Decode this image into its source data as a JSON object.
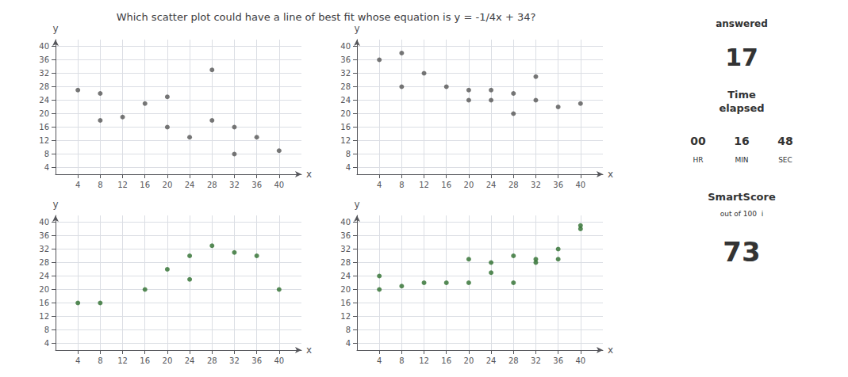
{
  "chart_data": [
    {
      "type": "scatter",
      "title": "Which scatter plot could have a line of best fit whose equation is y = -1/4x + 34?",
      "annotations": [
        "answered",
        "17",
        "Time\nelapsed",
        "00",
        "HR",
        "16",
        "MIN",
        "48",
        "SEC",
        "SmartScore",
        "out of 100  i",
        "73"
      ],
      "xlabel": "x",
      "ylabel": "y",
      "x": [
        4,
        8,
        8,
        12,
        16,
        20,
        20,
        24,
        28,
        28,
        32,
        32,
        36,
        40
      ],
      "values": [
        27,
        26,
        18,
        19,
        23,
        16,
        25,
        13,
        33,
        18,
        8,
        16,
        13,
        9
      ],
      "color": "#555555",
      "xlim": [
        0,
        44
      ],
      "ylim": [
        2,
        42
      ],
      "xticks": [
        4,
        8,
        12,
        16,
        20,
        24,
        28,
        32,
        36,
        40
      ],
      "yticks": [
        4,
        8,
        12,
        16,
        20,
        24,
        28,
        32,
        36,
        40
      ],
      "grid": true
    },
    {
      "type": "scatter",
      "xlabel": "x",
      "ylabel": "y",
      "x": [
        4,
        8,
        8,
        12,
        16,
        20,
        20,
        24,
        24,
        28,
        28,
        32,
        32,
        36,
        40
      ],
      "values": [
        36,
        38,
        28,
        32,
        28,
        27,
        24,
        27,
        24,
        26,
        20,
        31,
        24,
        22,
        23
      ],
      "color": "#555555",
      "xlim": [
        0,
        44
      ],
      "ylim": [
        2,
        42
      ],
      "xticks": [
        4,
        8,
        12,
        16,
        20,
        24,
        28,
        32,
        36,
        40
      ],
      "yticks": [
        4,
        8,
        12,
        16,
        20,
        24,
        28,
        32,
        36,
        40
      ],
      "grid": true
    },
    {
      "type": "scatter",
      "xlabel": "x",
      "ylabel": "y",
      "x": [
        4,
        8,
        16,
        20,
        24,
        24,
        28,
        32,
        36,
        40
      ],
      "values": [
        16,
        16,
        20,
        26,
        23,
        30,
        33,
        31,
        30,
        20
      ],
      "color": "#2d6e2d",
      "xlim": [
        0,
        44
      ],
      "ylim": [
        2,
        42
      ],
      "xticks": [
        4,
        8,
        12,
        16,
        20,
        24,
        28,
        32,
        36,
        40
      ],
      "yticks": [
        4,
        8,
        12,
        16,
        20,
        24,
        28,
        32,
        36,
        40
      ],
      "grid": true
    },
    {
      "type": "scatter",
      "xlabel": "x",
      "ylabel": "y",
      "x": [
        4,
        4,
        8,
        12,
        16,
        20,
        20,
        24,
        24,
        28,
        28,
        32,
        32,
        36,
        36,
        40,
        40
      ],
      "values": [
        24,
        20,
        21,
        22,
        22,
        29,
        22,
        25,
        28,
        22,
        30,
        29,
        28,
        32,
        29,
        39,
        38
      ],
      "color": "#2d6e2d",
      "xlim": [
        0,
        44
      ],
      "ylim": [
        2,
        42
      ],
      "xticks": [
        4,
        8,
        12,
        16,
        20,
        24,
        28,
        32,
        36,
        40
      ],
      "yticks": [
        4,
        8,
        12,
        16,
        20,
        24,
        28,
        32,
        36,
        40
      ],
      "grid": true
    }
  ]
}
